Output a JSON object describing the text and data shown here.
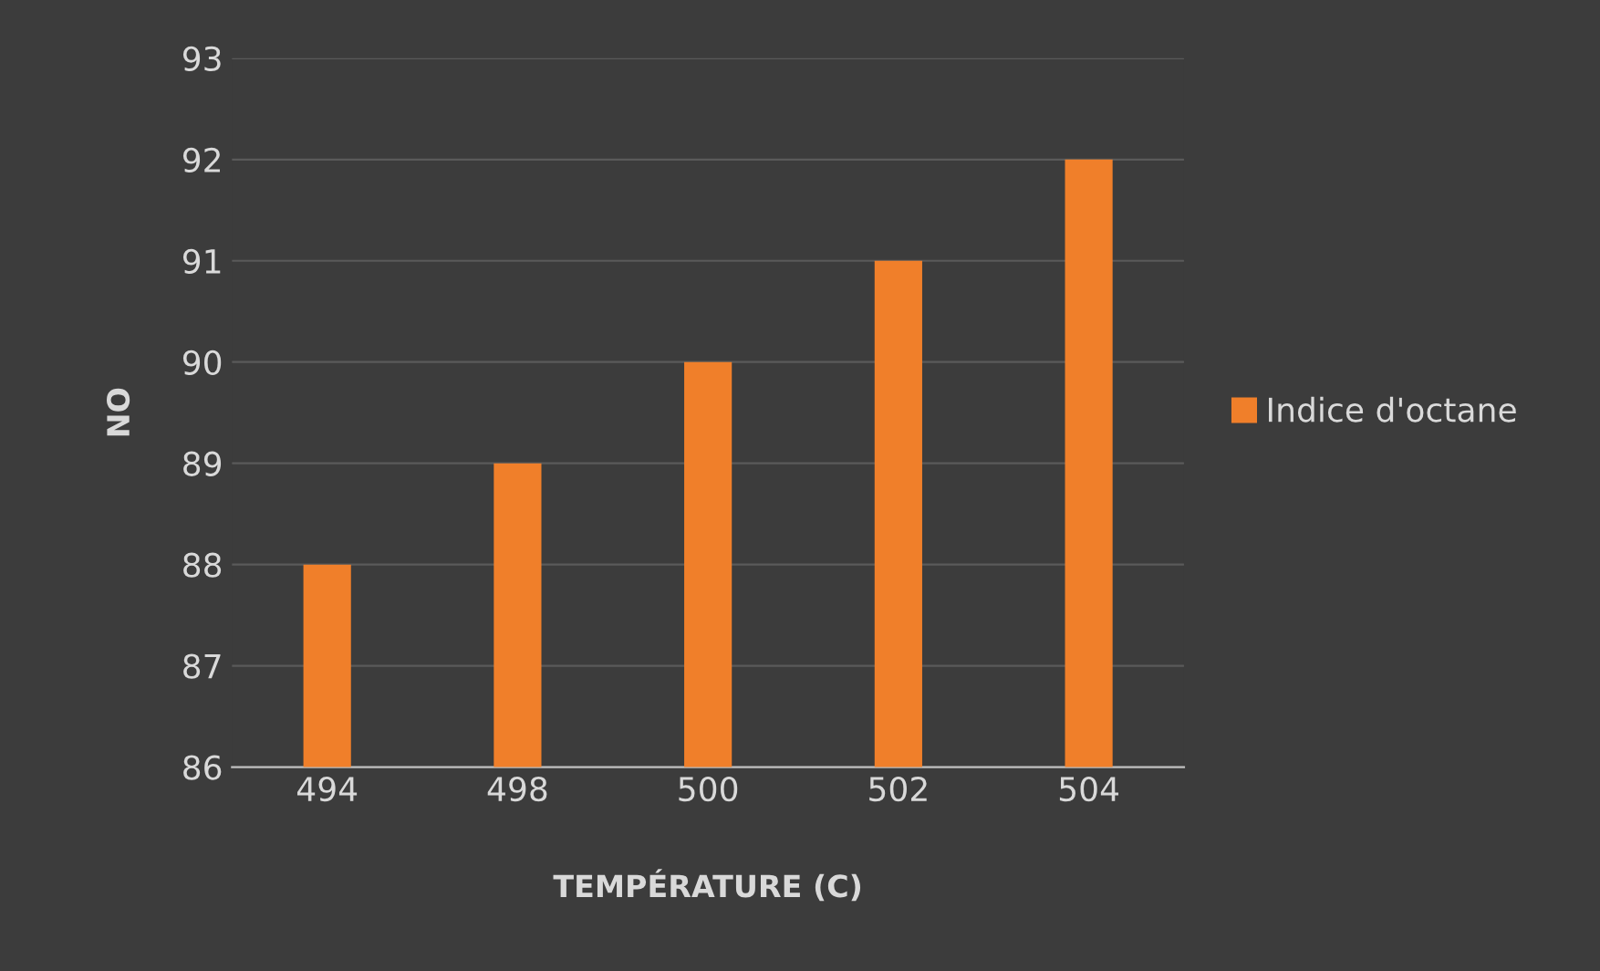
{
  "chart_data": {
    "type": "bar",
    "xlabel": "TEMPÉRATURE (C)",
    "ylabel": "NO",
    "categories": [
      "494",
      "498",
      "500",
      "502",
      "504"
    ],
    "series": [
      {
        "name": "Indice d'octane",
        "color": "#f07f2a",
        "values": [
          88,
          89,
          90,
          91,
          92
        ]
      }
    ],
    "ylim": [
      86,
      93
    ],
    "yticks": [
      86,
      87,
      88,
      89,
      90,
      91,
      92,
      93
    ],
    "grid": "y",
    "legend": "right"
  }
}
